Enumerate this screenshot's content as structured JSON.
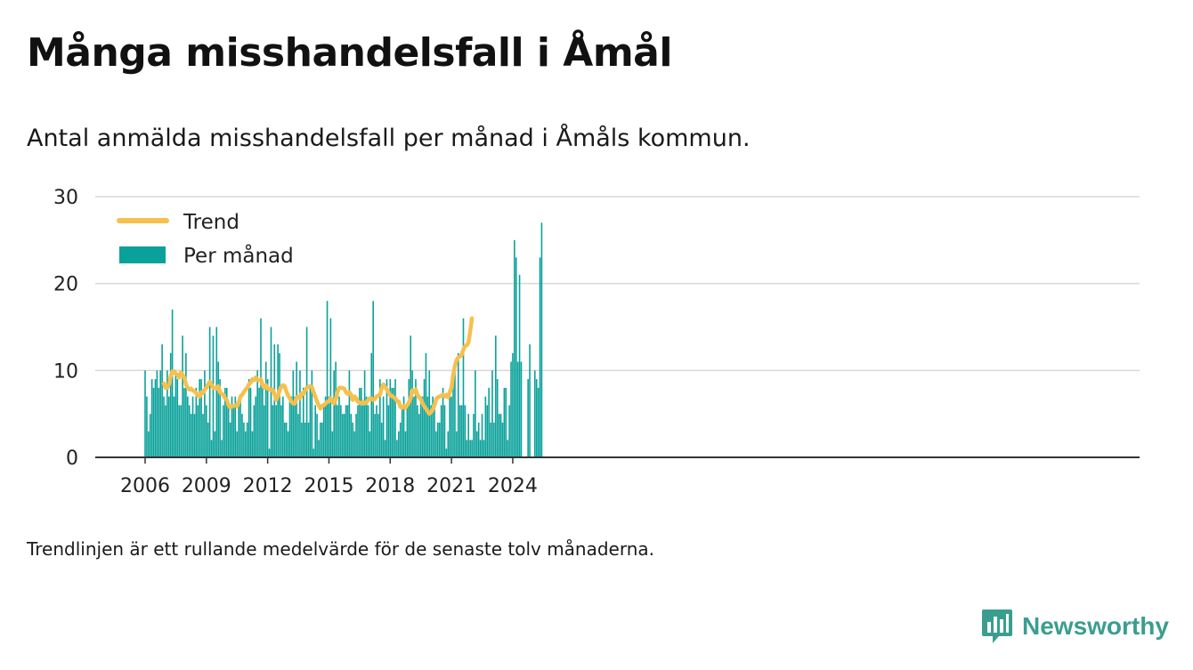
{
  "title": "Många misshandelsfall i Åmål",
  "subtitle": "Antal anmälda misshandelsfall per månad i Åmåls kommun.",
  "footnote": "Trendlinjen är ett rullande medelvärde för de senaste tolv månaderna.",
  "brand": {
    "name": "Newsworthy",
    "icon": "bar-chart-speech-bubble-icon"
  },
  "colors": {
    "bar": "#0aa19a",
    "trend": "#f5c04d",
    "grid": "#d9d9d9",
    "axis": "#333333",
    "brand": "#3a9e8f"
  },
  "chart_data": {
    "type": "bar",
    "start": "2006-01",
    "frequency": "monthly",
    "ylim": [
      0,
      30
    ],
    "yticks": [
      0,
      10,
      20,
      30
    ],
    "xticks": [
      "2006",
      "2009",
      "2012",
      "2015",
      "2018",
      "2021",
      "2024"
    ],
    "grid": true,
    "legend_position": "top-left",
    "series": [
      {
        "name": "Per månad",
        "kind": "bar",
        "values": [
          10,
          7,
          3,
          5,
          9,
          8,
          9,
          10,
          8,
          10,
          13,
          7,
          6,
          10,
          7,
          12,
          17,
          7,
          10,
          9,
          6,
          6,
          14,
          8,
          12,
          7,
          6,
          5,
          7,
          5,
          8,
          6,
          9,
          9,
          5,
          10,
          6,
          4,
          15,
          2,
          14,
          3,
          15,
          11,
          9,
          2,
          6,
          8,
          8,
          6,
          4,
          7,
          6,
          7,
          3,
          6,
          7,
          5,
          4,
          3,
          4,
          9,
          8,
          3,
          6,
          7,
          10,
          8,
          16,
          8,
          6,
          11,
          9,
          1,
          15,
          6,
          13,
          6,
          13,
          12,
          6,
          7,
          4,
          4,
          3,
          7,
          7,
          10,
          7,
          11,
          5,
          10,
          4,
          8,
          4,
          15,
          4,
          8,
          10,
          1,
          6,
          5,
          2,
          4,
          4,
          6,
          7,
          18,
          7,
          16,
          3,
          10,
          11,
          6,
          7,
          6,
          5,
          5,
          6,
          6,
          10,
          5,
          4,
          3,
          5,
          6,
          8,
          8,
          6,
          10,
          7,
          6,
          3,
          12,
          18,
          5,
          6,
          5,
          9,
          4,
          7,
          2,
          9,
          6,
          9,
          8,
          8,
          9,
          2,
          3,
          4,
          6,
          7,
          3,
          6,
          9,
          14,
          10,
          7,
          9,
          6,
          5,
          7,
          7,
          9,
          12,
          7,
          10,
          6,
          7,
          6,
          3,
          4,
          4,
          6,
          8,
          6,
          1,
          3,
          8,
          7,
          9,
          11,
          3,
          12,
          6,
          6,
          16,
          6,
          2,
          5,
          2,
          2,
          5,
          10,
          3,
          4,
          2,
          5,
          2,
          7,
          6,
          8,
          4,
          10,
          4,
          14,
          9,
          5,
          5,
          4,
          8,
          8,
          2,
          6,
          11,
          12,
          25,
          23,
          11,
          21,
          11,
          0,
          0,
          0,
          9,
          13,
          0,
          0,
          10,
          9,
          8,
          23,
          27
        ]
      },
      {
        "name": "Trend",
        "kind": "line",
        "start": "2006-12",
        "values": [
          8.5,
          8.0,
          8.0,
          8.4,
          9.3,
          9.9,
          9.9,
          9.6,
          9.5,
          9.2,
          9.8,
          9.5,
          9.2,
          8.4,
          8.0,
          7.8,
          7.9,
          7.7,
          7.6,
          7.4,
          7.1,
          7.0,
          7.5,
          7.4,
          7.8,
          8.0,
          8.4,
          8.7,
          8.4,
          8.0,
          8.0,
          7.9,
          8.2,
          7.5,
          7.3,
          7.2,
          6.8,
          6.6,
          6.0,
          5.7,
          5.9,
          5.9,
          6.0,
          5.9,
          6.3,
          7.0,
          7.2,
          7.5,
          7.8,
          8.0,
          8.4,
          8.6,
          9.0,
          8.9,
          9.2,
          8.9,
          8.9,
          9.0,
          8.3,
          8.0,
          8.3,
          7.9,
          7.9,
          7.7,
          7.8,
          7.3,
          6.6,
          7.0,
          7.7,
          8.1,
          8.3,
          8.2,
          7.6,
          7.1,
          6.8,
          6.4,
          6.2,
          6.2,
          6.8,
          7.0,
          6.8,
          7.4,
          7.3,
          7.7,
          8.0,
          8.1,
          8.2,
          8.1,
          7.5,
          7.0,
          6.4,
          6.0,
          5.6,
          5.9,
          6.0,
          6.2,
          6.4,
          6.4,
          6.8,
          6.5,
          6.2,
          6.7,
          7.5,
          8.0,
          8.0,
          8.0,
          7.9,
          7.5,
          7.3,
          7.5,
          7.2,
          6.6,
          7.0,
          6.8,
          6.4,
          6.3,
          6.2,
          6.4,
          6.2,
          6.3,
          6.6,
          6.8,
          6.8,
          6.6,
          6.7,
          7.0,
          7.1,
          7.2,
          8.0,
          8.4,
          8.1,
          7.8,
          7.5,
          7.1,
          7.1,
          6.9,
          6.8,
          6.5,
          6.4,
          5.8,
          5.7,
          5.9,
          5.7,
          6.0,
          6.3,
          6.8,
          7.7,
          7.5,
          7.8,
          7.2,
          6.9,
          6.7,
          6.2,
          5.9,
          5.6,
          5.3,
          5.0,
          5.2,
          5.5,
          6.0,
          6.7,
          6.9,
          7.0,
          7.1,
          7.2,
          7.0,
          7.2,
          6.9,
          7.5,
          8.0,
          9.5,
          10.5,
          11.2,
          11.5,
          11.6,
          11.8,
          12.4,
          12.8,
          12.9,
          13.2,
          14.5,
          16.0
        ]
      }
    ]
  }
}
